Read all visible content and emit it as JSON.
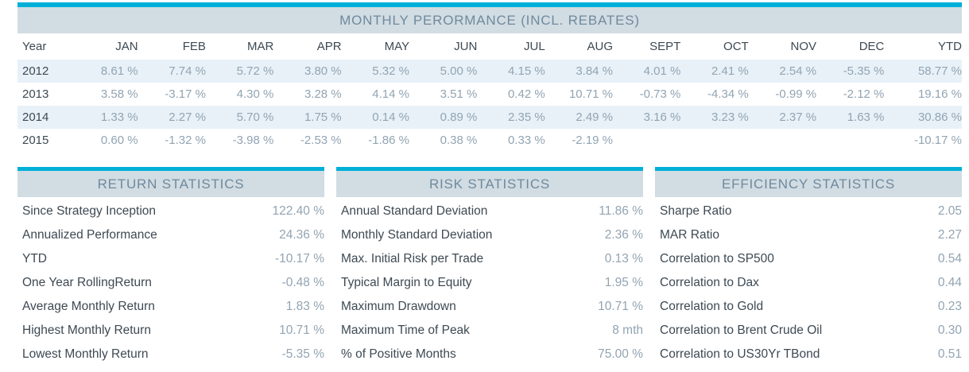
{
  "colors": {
    "accent": "#00b0d8",
    "band_bg": "#d2dce3",
    "heading_text": "#6f8a9d",
    "dark_text": "#3d4953",
    "value_text": "#92a4b2",
    "stripe_bg": "#e8f1f8"
  },
  "chart_data": [
    {
      "type": "table",
      "title": "MONTHLY PERORMANCE (INCL. REBATES)",
      "columns": [
        "Year",
        "JAN",
        "FEB",
        "MAR",
        "APR",
        "MAY",
        "JUN",
        "JUL",
        "AUG",
        "SEPT",
        "OCT",
        "NOV",
        "DEC",
        "YTD"
      ],
      "rows": [
        [
          "2012",
          "8.61 %",
          "7.74 %",
          "5.72 %",
          "3.80 %",
          "5.32 %",
          "5.00 %",
          "4.15 %",
          "3.84 %",
          "4.01 %",
          "2.41 %",
          "2.54 %",
          "-5.35 %",
          "58.77 %"
        ],
        [
          "2013",
          "3.58 %",
          "-3.17 %",
          "4.30 %",
          "3.28 %",
          "4.14 %",
          "3.51 %",
          "0.42 %",
          "10.71 %",
          "-0.73 %",
          "-4.34 %",
          "-0.99 %",
          "-2.12 %",
          "19.16 %"
        ],
        [
          "2014",
          "1.33 %",
          "2.27 %",
          "5.70 %",
          "1.75 %",
          "0.14 %",
          "0.89 %",
          "2.35 %",
          "2.49 %",
          "3.16 %",
          "3.23 %",
          "2.37 %",
          "1.63 %",
          "30.86 %"
        ],
        [
          "2015",
          "0.60 %",
          "-1.32 %",
          "-3.98 %",
          "-2.53 %",
          "-1.86 %",
          "0.38 %",
          "0.33 %",
          "-2.19 %",
          "",
          "",
          "",
          "",
          "-10.17 %"
        ]
      ]
    },
    {
      "type": "table",
      "title": "RETURN STATISTICS",
      "rows": [
        [
          "Since Strategy Inception",
          "122.40 %"
        ],
        [
          "Annualized Performance",
          "24.36 %"
        ],
        [
          "YTD",
          "-10.17 %"
        ],
        [
          "One Year RollingReturn",
          "-0.48 %"
        ],
        [
          "Average Monthly Return",
          "1.83 %"
        ],
        [
          "Highest Monthly Return",
          "10.71 %"
        ],
        [
          "Lowest Monthly Return",
          "-5.35 %"
        ]
      ]
    },
    {
      "type": "table",
      "title": "RISK STATISTICS",
      "rows": [
        [
          "Annual Standard Deviation",
          "11.86 %"
        ],
        [
          "Monthly Standard Deviation",
          "2.36 %"
        ],
        [
          "Max. Initial Risk per Trade",
          "0.13 %"
        ],
        [
          "Typical Margin to Equity",
          "1.95 %"
        ],
        [
          "Maximum Drawdown",
          "10.71 %"
        ],
        [
          "Maximum Time of Peak",
          "8 mth"
        ],
        [
          "% of Positive Months",
          "75.00 %"
        ]
      ]
    },
    {
      "type": "table",
      "title": "EFFICIENCY STATISTICS",
      "rows": [
        [
          "Sharpe Ratio",
          "2.05"
        ],
        [
          "MAR Ratio",
          "2.27"
        ],
        [
          "Correlation to SP500",
          "0.54"
        ],
        [
          "Correlation to Dax",
          "0.44"
        ],
        [
          "Correlation to Gold",
          "0.23"
        ],
        [
          "Correlation to Brent Crude Oil",
          "0.30"
        ],
        [
          "Correlation to US30Yr TBond",
          "0.51"
        ]
      ]
    }
  ]
}
